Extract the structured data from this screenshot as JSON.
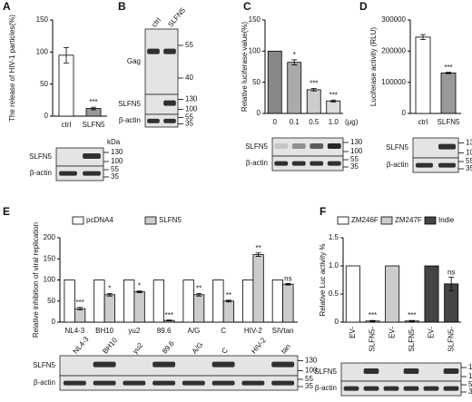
{
  "panel_labels": [
    "A",
    "B",
    "C",
    "D",
    "E",
    "F"
  ],
  "chart_data": [
    {
      "type": "bar",
      "y_label": "The release of HIV-1 particles(%)",
      "categories": [
        "ctrl",
        "SLFN5"
      ],
      "values": [
        95,
        12
      ],
      "errors": [
        12,
        2
      ],
      "colors": [
        "#ffffff",
        "#999999"
      ],
      "annotations": [
        null,
        "***"
      ],
      "ylim": [
        0,
        150
      ],
      "yticks": [
        0,
        50,
        100,
        150
      ]
    },
    {
      "type": "bar",
      "y_label": "Relative luciferase value(%)",
      "x_unit": "(μg)",
      "categories": [
        "0",
        "0.1",
        "0.5",
        "1.0"
      ],
      "values": [
        100,
        82,
        38,
        20
      ],
      "errors": [
        0,
        4,
        2,
        1.5
      ],
      "colors": [
        "#888888",
        "#aaaaaa",
        "#cccccc",
        "#dddddd"
      ],
      "annotations": [
        null,
        "*",
        "***",
        "***"
      ],
      "ylim": [
        0,
        150
      ],
      "yticks": [
        0,
        50,
        100,
        150
      ]
    },
    {
      "type": "bar",
      "y_label": "Luciferase activity (RLU)",
      "categories": [
        "ctrl",
        "SLFN5"
      ],
      "values": [
        245000,
        130000
      ],
      "errors": [
        8000,
        2000
      ],
      "colors": [
        "#ffffff",
        "#999999"
      ],
      "annotations": [
        null,
        "***"
      ],
      "ylim": [
        0,
        300000
      ],
      "yticks": [
        0,
        100000,
        200000,
        300000
      ]
    },
    {
      "type": "bar",
      "y_label": "Relative inhibition of viral replication",
      "categories": [
        "NL4-3",
        "BH10",
        "yu2",
        "89.6",
        "A/G",
        "C",
        "HIV-2",
        "SIVtan"
      ],
      "series": [
        {
          "name": "pcDNA4",
          "color": "#ffffff",
          "values": [
            100,
            100,
            100,
            100,
            100,
            100,
            100,
            100
          ],
          "errors": [
            0,
            0,
            0,
            0,
            0,
            0,
            0,
            0
          ]
        },
        {
          "name": "SLFN5",
          "color": "#cccccc",
          "values": [
            32,
            65,
            72,
            4,
            65,
            50,
            160,
            90
          ],
          "errors": [
            3,
            3,
            2,
            1,
            3,
            2,
            4,
            2
          ]
        }
      ],
      "annotations": [
        "***",
        "*",
        "*",
        "***",
        "**",
        "**",
        "**",
        "ns"
      ],
      "ylim": [
        0,
        200
      ],
      "yticks": [
        0,
        50,
        100,
        150,
        200
      ]
    },
    {
      "type": "bar",
      "y_label": "Relative Luc activity %",
      "categories": [
        "EV-",
        "SLFN5-",
        "EV-",
        "SLFN5-",
        "EV-",
        "SLFN5-"
      ],
      "series": [
        {
          "name": "ZM246F",
          "color": "#ffffff",
          "values": [
            1,
            0.02,
            null,
            null,
            null,
            null
          ],
          "errors": [
            0,
            0.01,
            null,
            null,
            null,
            null
          ]
        },
        {
          "name": "ZM247F",
          "color": "#cccccc",
          "values": [
            null,
            null,
            1,
            0.02,
            null,
            null
          ],
          "errors": [
            null,
            null,
            0,
            0.01,
            null,
            null
          ]
        },
        {
          "name": "Indie",
          "color": "#444444",
          "values": [
            null,
            null,
            null,
            null,
            1,
            0.68
          ],
          "errors": [
            null,
            null,
            null,
            null,
            0,
            0.12
          ]
        }
      ],
      "annotations": [
        null,
        "***",
        null,
        "***",
        null,
        "ns"
      ],
      "ylim": [
        0,
        1.5
      ],
      "yticks": [
        0,
        0.5,
        {
          "value": 1,
          "label": "1.0"
        },
        1.5
      ]
    }
  ],
  "blots": [
    {
      "unit": "kDa",
      "rows": [
        {
          "label": "SLFN5",
          "markers": [
            "130",
            "100"
          ]
        },
        {
          "label": "β-actin",
          "markers": [
            "55",
            "35"
          ]
        }
      ]
    },
    {
      "lanes": [
        "ctrl",
        "SLFN5"
      ],
      "rows": [
        {
          "label": "Gag",
          "markers": [
            "55",
            "40"
          ]
        },
        {
          "label": "SLFN5",
          "markers": [
            "130",
            "100"
          ]
        },
        {
          "label": "β-actin",
          "markers": [
            "55",
            "35"
          ]
        }
      ]
    },
    {
      "rows": [
        {
          "label": "SLFN5",
          "markers": [
            "130",
            "100"
          ]
        },
        {
          "label": "β-actin",
          "markers": [
            "55",
            "35"
          ]
        }
      ]
    },
    {
      "rows": [
        {
          "label": "SLFN5",
          "markers": [
            "130",
            "100"
          ]
        },
        {
          "label": "β-actin",
          "markers": [
            "55",
            "35"
          ]
        }
      ]
    },
    {
      "lanes": [
        "NL4-3",
        "BH10",
        "yu2",
        "89.6",
        "A/G",
        "C",
        "HIV-2",
        "tan"
      ],
      "rows": [
        {
          "label": "SLFN5",
          "markers": [
            "130",
            "100"
          ]
        },
        {
          "label": "β-actin",
          "markers": [
            "55",
            "35"
          ]
        }
      ]
    },
    {
      "rows": [
        {
          "label": "SLFN5",
          "markers": [
            "130",
            "100"
          ]
        },
        {
          "label": "β-actin",
          "markers": [
            "55",
            "35"
          ]
        }
      ]
    }
  ]
}
